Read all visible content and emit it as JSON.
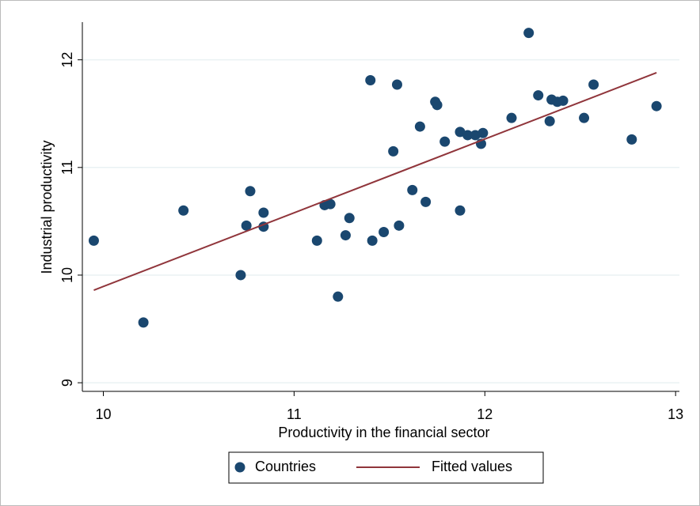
{
  "chart_data": {
    "type": "scatter",
    "xlabel": "Productivity in the financial sector",
    "ylabel": "Industrial productivity",
    "xlim": [
      9.89,
      13.02
    ],
    "xticks": [
      10,
      11,
      12,
      13
    ],
    "ylim": [
      8.92,
      12.35
    ],
    "yticks": [
      9,
      10,
      11,
      12
    ],
    "grid": true,
    "legend": "bottom",
    "series": [
      {
        "name": "Countries",
        "color": "#1a476f",
        "x": [
          9.95,
          10.21,
          10.42,
          10.72,
          10.75,
          10.77,
          10.84,
          10.84,
          11.12,
          11.16,
          11.19,
          11.23,
          11.27,
          11.29,
          11.4,
          11.41,
          11.47,
          11.52,
          11.54,
          11.55,
          11.62,
          11.66,
          11.69,
          11.74,
          11.75,
          11.79,
          11.87,
          11.87,
          11.91,
          11.95,
          11.99,
          11.98,
          12.14,
          12.23,
          12.28,
          12.34,
          12.35,
          12.38,
          12.41,
          12.52,
          12.57,
          12.77,
          12.9
        ],
        "values": [
          10.32,
          9.56,
          10.6,
          10.0,
          10.46,
          10.78,
          10.58,
          10.45,
          10.32,
          10.65,
          10.66,
          9.8,
          10.37,
          10.53,
          11.81,
          10.32,
          10.4,
          11.15,
          11.77,
          10.46,
          10.79,
          11.38,
          10.68,
          11.61,
          11.58,
          11.24,
          10.6,
          11.33,
          11.3,
          11.3,
          11.32,
          11.22,
          11.46,
          12.25,
          11.67,
          11.43,
          11.63,
          11.61,
          11.62,
          11.46,
          11.77,
          11.26,
          11.57
        ]
      },
      {
        "name": "Fitted values",
        "type": "line",
        "color": "#90353b",
        "x": [
          9.95,
          12.9
        ],
        "values": [
          9.86,
          11.88
        ]
      }
    ]
  }
}
